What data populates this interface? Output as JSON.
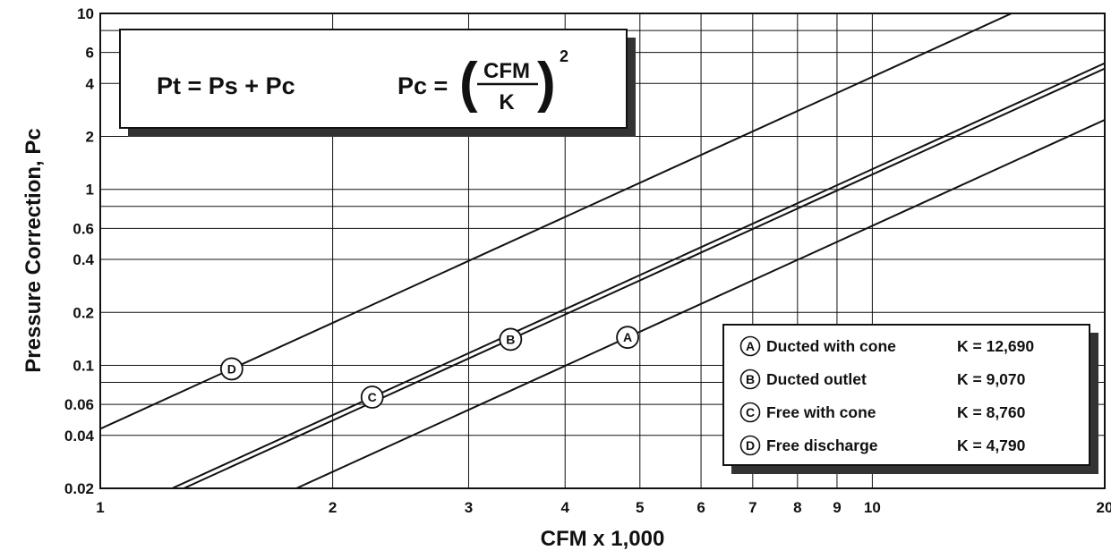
{
  "chart_data": {
    "type": "line",
    "title": "",
    "xlabel": "CFM x 1,000",
    "ylabel": "Pressure Correction,  Pc",
    "xscale": "log",
    "yscale": "log",
    "xlim": [
      1,
      20
    ],
    "ylim": [
      0.02,
      10
    ],
    "grid": true,
    "xticks": [
      1,
      2,
      3,
      4,
      5,
      6,
      7,
      8,
      9,
      10,
      20
    ],
    "xtick_labels": [
      "1",
      "2",
      "3",
      "4",
      "5",
      "6",
      "7",
      "8",
      "9",
      "10",
      "20"
    ],
    "yticks": [
      0.02,
      0.04,
      0.06,
      0.1,
      0.2,
      0.4,
      0.6,
      1,
      2,
      4,
      6,
      10
    ],
    "ytick_labels": [
      "0.02",
      "0.04",
      "0.06",
      "0.1",
      "0.2",
      "0.4",
      "0.6",
      "1",
      "2",
      "4",
      "6",
      "10"
    ],
    "formula": {
      "left": "Pt = Ps + Pc",
      "right_prefix": "Pc =",
      "numerator": "CFM",
      "denominator": "K",
      "exponent": "2"
    },
    "series": [
      {
        "letter": "A",
        "name": "Ducted with cone",
        "k_label": "K = 12,690",
        "K": 12690,
        "label_at": 4.82
      },
      {
        "letter": "B",
        "name": "Ducted outlet",
        "k_label": "K = 9,070",
        "K": 9070,
        "label_at": 3.4
      },
      {
        "letter": "C",
        "name": "Free with cone",
        "k_label": "K = 8,760",
        "K": 8760,
        "label_at": 2.25
      },
      {
        "letter": "D",
        "name": "Free discharge",
        "k_label": "K = 4,790",
        "K": 4790,
        "label_at": 1.48
      }
    ],
    "legend_position": "bottom-right"
  }
}
